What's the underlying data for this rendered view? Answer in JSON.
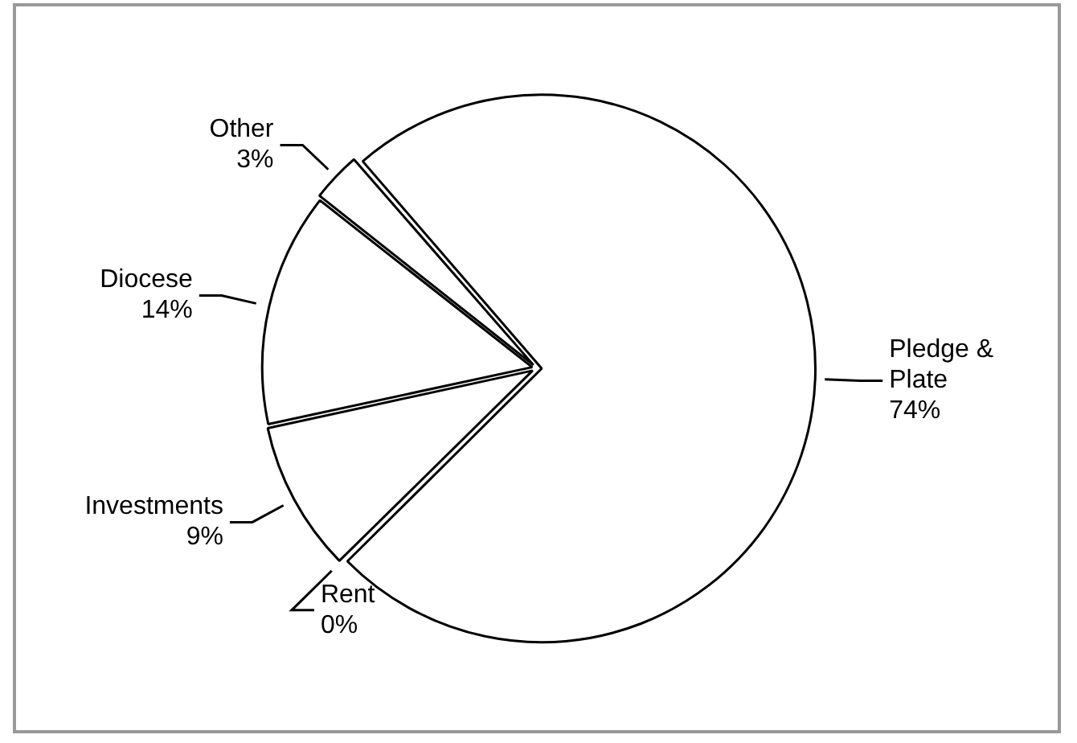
{
  "chart_data": {
    "type": "pie",
    "categories": [
      "Pledge & Plate",
      "Rent",
      "Investments",
      "Diocese",
      "Other"
    ],
    "values": [
      74,
      0,
      9,
      14,
      3
    ],
    "value_labels": [
      "74%",
      "0%",
      "9%",
      "14%",
      "3%"
    ],
    "colors": [
      "#ffffff",
      "#ffffff",
      "#ffffff",
      "#ffffff",
      "#ffffff"
    ],
    "legend": false
  }
}
